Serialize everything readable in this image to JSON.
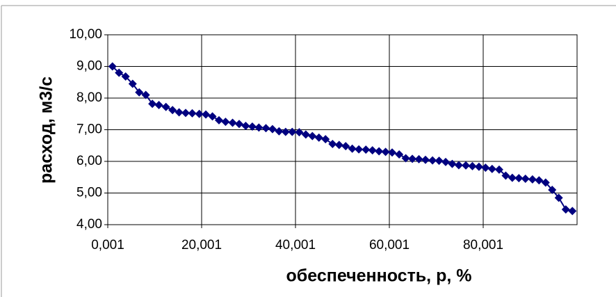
{
  "chart_data": {
    "type": "line",
    "xlabel": "обеспеченность, р, %",
    "ylabel": "расход, м3/с",
    "x": [
      1.0,
      2.4,
      3.8,
      5.3,
      6.7,
      8.1,
      9.5,
      10.9,
      12.4,
      13.8,
      15.2,
      16.6,
      18.0,
      19.5,
      20.9,
      22.3,
      23.7,
      25.1,
      26.6,
      28.0,
      29.4,
      30.8,
      32.2,
      33.7,
      35.1,
      36.5,
      37.9,
      39.3,
      40.8,
      42.2,
      43.6,
      45.0,
      46.4,
      47.9,
      49.3,
      50.7,
      52.1,
      53.5,
      55.0,
      56.4,
      57.8,
      59.2,
      60.6,
      62.1,
      63.5,
      64.9,
      66.3,
      67.7,
      69.2,
      70.6,
      72.0,
      73.4,
      74.8,
      76.3,
      77.7,
      79.1,
      80.5,
      81.9,
      83.4,
      84.8,
      86.2,
      87.6,
      89.0,
      90.5,
      91.9,
      93.3,
      94.7,
      96.1,
      97.6,
      99.0
    ],
    "series": [
      {
        "color": "#000080",
        "values": [
          9.0,
          8.8,
          8.68,
          8.45,
          8.18,
          8.1,
          7.82,
          7.78,
          7.72,
          7.62,
          7.55,
          7.53,
          7.52,
          7.5,
          7.48,
          7.42,
          7.3,
          7.25,
          7.22,
          7.18,
          7.12,
          7.1,
          7.07,
          7.05,
          7.02,
          6.95,
          6.93,
          6.93,
          6.92,
          6.85,
          6.8,
          6.75,
          6.7,
          6.55,
          6.52,
          6.48,
          6.4,
          6.38,
          6.37,
          6.35,
          6.32,
          6.3,
          6.28,
          6.22,
          6.1,
          6.08,
          6.07,
          6.05,
          6.03,
          6.02,
          5.98,
          5.92,
          5.88,
          5.87,
          5.85,
          5.83,
          5.8,
          5.76,
          5.74,
          5.55,
          5.48,
          5.47,
          5.45,
          5.43,
          5.4,
          5.33,
          5.1,
          4.85,
          4.48,
          4.43
        ]
      }
    ],
    "xlim": [
      0.001,
      100.001
    ],
    "xticks": [
      {
        "value": 0.001,
        "label": "0,001"
      },
      {
        "value": 20.001,
        "label": "20,001"
      },
      {
        "value": 40.001,
        "label": "40,001"
      },
      {
        "value": 60.001,
        "label": "60,001"
      },
      {
        "value": 80.001,
        "label": "80,001"
      }
    ],
    "ylim": [
      4,
      10
    ],
    "yticks": [
      {
        "value": 4,
        "label": "4,00"
      },
      {
        "value": 5,
        "label": "5,00"
      },
      {
        "value": 6,
        "label": "6,00"
      },
      {
        "value": 7,
        "label": "7,00"
      },
      {
        "value": 8,
        "label": "8,00"
      },
      {
        "value": 9,
        "label": "9,00"
      },
      {
        "value": 10,
        "label": "10,00"
      }
    ],
    "grid": true
  }
}
